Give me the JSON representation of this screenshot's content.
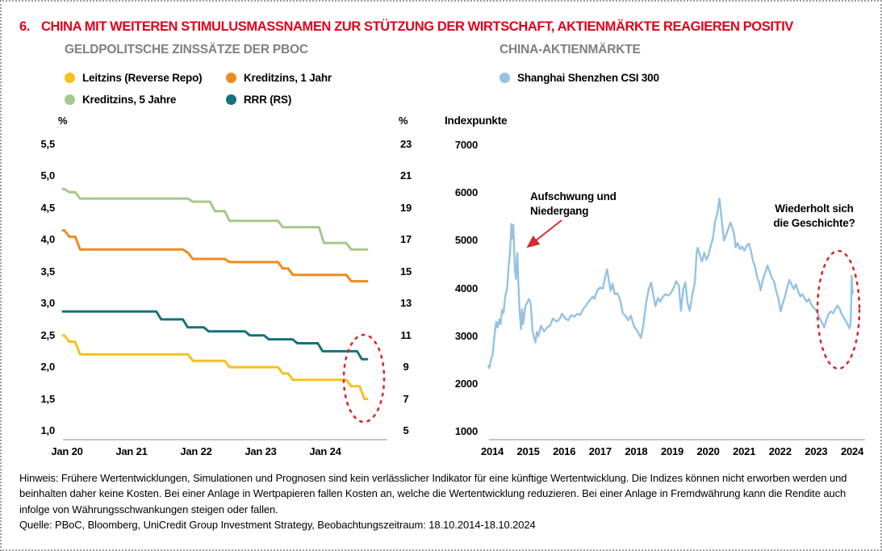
{
  "title": {
    "number": "6.",
    "text": "CHINA MIT WEITEREN STIMULUSMASSNAMEN ZUR STÜTZUNG DER WIRTSCHAFT, AKTIENMÄRKTE REAGIEREN POSITIV"
  },
  "colors": {
    "title_red": "#E2001A",
    "annotation_red": "#D42B30",
    "chart_title_gray": "#7F7F7F",
    "axis_gray": "#8C8C8C",
    "leitzins_yellow": "#F5C21D",
    "kreditzins1_orange": "#F18A1E",
    "kreditzins5_green": "#A6C88C",
    "rrr_teal": "#15727E",
    "csi300_blue": "#95C2E3"
  },
  "left_chart": {
    "title": "GELDPOLITSCHE ZINSSÄTZE DER PBOC",
    "legend": [
      {
        "label": "Leitzins (Reverse Repo)",
        "color": "#F5C21D"
      },
      {
        "label": "Kreditzins, 1 Jahr",
        "color": "#F18A1E"
      },
      {
        "label": "Kreditzins, 5 Jahre",
        "color": "#A6C88C"
      },
      {
        "label": "RRR (RS)",
        "color": "#15727E"
      }
    ],
    "y_left": {
      "unit": "%",
      "ticks": [
        "5,5",
        "5,0",
        "4,5",
        "4,0",
        "3,5",
        "3,0",
        "2,5",
        "2,0",
        "1,5",
        "1,0"
      ]
    },
    "y_right": {
      "unit": "%",
      "ticks": [
        "23",
        "21",
        "19",
        "17",
        "15",
        "13",
        "11",
        "9",
        "7",
        "5"
      ]
    },
    "x_ticks": [
      "Jan 20",
      "Jan 21",
      "Jan 22",
      "Jan 23",
      "Jan 24"
    ]
  },
  "right_chart": {
    "title": "CHINA-AKTIENMÄRKTE",
    "legend": [
      {
        "label": "Shanghai Shenzhen CSI 300",
        "color": "#95C2E3"
      }
    ],
    "y": {
      "unit": "Indexpunkte",
      "ticks": [
        "7000",
        "6000",
        "5000",
        "4000",
        "3000",
        "2000",
        "1000"
      ]
    },
    "x_ticks": [
      "2014",
      "2015",
      "2016",
      "2017",
      "2018",
      "2019",
      "2020",
      "2021",
      "2022",
      "2023",
      "2024"
    ],
    "annotations": [
      {
        "lines": [
          "Aufschwung und",
          "Niedergang"
        ]
      },
      {
        "lines": [
          "Wiederholt sich",
          "die Geschichte?"
        ]
      }
    ]
  },
  "chart_data": [
    {
      "type": "line",
      "title": "GELDPOLITSCHE ZINSSÄTZE DER PBOC",
      "xlabel": "",
      "x_tick_labels": [
        "Jan 20",
        "Jan 21",
        "Jan 22",
        "Jan 23",
        "Jan 24"
      ],
      "xlim": [
        2020.0,
        2024.8
      ],
      "y_left_label": "%",
      "y_left_range": [
        1.0,
        5.5
      ],
      "y_right_label": "%",
      "y_right_range": [
        5,
        23
      ],
      "grid": false,
      "legend_position": "top",
      "line_style": "step",
      "series": [
        {
          "name": "Leitzins (Reverse Repo)",
          "axis": "left",
          "color": "#F5C21D",
          "points": [
            [
              2020.0,
              2.5
            ],
            [
              2020.1,
              2.4
            ],
            [
              2020.27,
              2.2
            ],
            [
              2022.05,
              2.1
            ],
            [
              2022.63,
              2.0
            ],
            [
              2023.47,
              1.9
            ],
            [
              2023.63,
              1.8
            ],
            [
              2024.55,
              1.7
            ],
            [
              2024.76,
              1.5
            ],
            [
              2024.8,
              1.5
            ]
          ]
        },
        {
          "name": "Kreditzins, 1 Jahr",
          "axis": "left",
          "color": "#F18A1E",
          "points": [
            [
              2020.0,
              4.15
            ],
            [
              2020.1,
              4.05
            ],
            [
              2020.27,
              3.85
            ],
            [
              2021.97,
              3.8
            ],
            [
              2022.05,
              3.7
            ],
            [
              2022.63,
              3.65
            ],
            [
              2023.47,
              3.55
            ],
            [
              2023.63,
              3.45
            ],
            [
              2024.55,
              3.35
            ],
            [
              2024.8,
              3.35
            ]
          ]
        },
        {
          "name": "Kreditzins, 5 Jahre",
          "axis": "left",
          "color": "#A6C88C",
          "points": [
            [
              2020.0,
              4.8
            ],
            [
              2020.1,
              4.75
            ],
            [
              2020.27,
              4.65
            ],
            [
              2022.05,
              4.6
            ],
            [
              2022.4,
              4.45
            ],
            [
              2022.63,
              4.3
            ],
            [
              2023.47,
              4.2
            ],
            [
              2024.12,
              3.95
            ],
            [
              2024.55,
              3.85
            ],
            [
              2024.8,
              3.85
            ]
          ]
        },
        {
          "name": "RRR (RS)",
          "axis": "right",
          "color": "#15727E",
          "points": [
            [
              2020.0,
              12.5
            ],
            [
              2021.55,
              12.0
            ],
            [
              2021.97,
              11.5
            ],
            [
              2022.3,
              11.25
            ],
            [
              2022.95,
              11.0
            ],
            [
              2023.25,
              10.75
            ],
            [
              2023.7,
              10.5
            ],
            [
              2024.1,
              10.0
            ],
            [
              2024.72,
              9.5
            ],
            [
              2024.8,
              9.5
            ]
          ]
        }
      ]
    },
    {
      "type": "line",
      "title": "CHINA-AKTIENMÄRKTE",
      "ylabel": "Indexpunkte",
      "ylim": [
        1000,
        7000
      ],
      "xlim": [
        2014.8,
        2024.85
      ],
      "x_tick_labels": [
        "2014",
        "2015",
        "2016",
        "2017",
        "2018",
        "2019",
        "2020",
        "2021",
        "2022",
        "2023",
        "2024"
      ],
      "grid": false,
      "annotations": [
        "Aufschwung und Niedergang (2015)",
        "Wiederholt sich die Geschichte? (2024)"
      ],
      "series": [
        {
          "name": "Shanghai Shenzhen CSI 300",
          "color": "#95C2E3",
          "points": [
            [
              2014.8,
              2400
            ],
            [
              2014.83,
              2330
            ],
            [
              2014.87,
              2480
            ],
            [
              2014.92,
              2600
            ],
            [
              2014.97,
              3000
            ],
            [
              2015.02,
              3300
            ],
            [
              2015.06,
              3180
            ],
            [
              2015.1,
              3350
            ],
            [
              2015.14,
              3250
            ],
            [
              2015.18,
              3550
            ],
            [
              2015.22,
              3480
            ],
            [
              2015.27,
              3850
            ],
            [
              2015.32,
              3980
            ],
            [
              2015.36,
              4450
            ],
            [
              2015.4,
              4750
            ],
            [
              2015.44,
              5350
            ],
            [
              2015.46,
              5050
            ],
            [
              2015.49,
              5330
            ],
            [
              2015.53,
              4450
            ],
            [
              2015.56,
              4200
            ],
            [
              2015.6,
              4740
            ],
            [
              2015.63,
              4100
            ],
            [
              2015.66,
              3560
            ],
            [
              2015.7,
              3150
            ],
            [
              2015.73,
              3560
            ],
            [
              2015.76,
              3250
            ],
            [
              2015.82,
              3630
            ],
            [
              2015.87,
              3700
            ],
            [
              2015.92,
              3780
            ],
            [
              2015.97,
              3680
            ],
            [
              2016.02,
              3100
            ],
            [
              2016.07,
              2950
            ],
            [
              2016.1,
              2870
            ],
            [
              2016.14,
              3090
            ],
            [
              2016.18,
              3000
            ],
            [
              2016.25,
              3220
            ],
            [
              2016.33,
              3100
            ],
            [
              2016.42,
              3180
            ],
            [
              2016.5,
              3220
            ],
            [
              2016.58,
              3370
            ],
            [
              2016.67,
              3310
            ],
            [
              2016.75,
              3340
            ],
            [
              2016.83,
              3470
            ],
            [
              2016.92,
              3370
            ],
            [
              2017.0,
              3330
            ],
            [
              2017.08,
              3440
            ],
            [
              2017.17,
              3410
            ],
            [
              2017.25,
              3470
            ],
            [
              2017.33,
              3440
            ],
            [
              2017.42,
              3580
            ],
            [
              2017.5,
              3650
            ],
            [
              2017.58,
              3740
            ],
            [
              2017.67,
              3830
            ],
            [
              2017.72,
              3780
            ],
            [
              2017.8,
              3960
            ],
            [
              2017.88,
              4020
            ],
            [
              2017.95,
              3990
            ],
            [
              2018.02,
              4250
            ],
            [
              2018.07,
              4400
            ],
            [
              2018.12,
              4150
            ],
            [
              2018.17,
              3950
            ],
            [
              2018.22,
              4100
            ],
            [
              2018.28,
              3880
            ],
            [
              2018.35,
              3900
            ],
            [
              2018.42,
              3780
            ],
            [
              2018.5,
              3480
            ],
            [
              2018.58,
              3420
            ],
            [
              2018.65,
              3330
            ],
            [
              2018.72,
              3430
            ],
            [
              2018.8,
              3220
            ],
            [
              2018.88,
              3130
            ],
            [
              2018.95,
              3040
            ],
            [
              2019.0,
              2960
            ],
            [
              2019.07,
              3250
            ],
            [
              2019.14,
              3680
            ],
            [
              2019.21,
              3980
            ],
            [
              2019.28,
              4120
            ],
            [
              2019.33,
              3900
            ],
            [
              2019.4,
              3630
            ],
            [
              2019.47,
              3800
            ],
            [
              2019.53,
              3720
            ],
            [
              2019.6,
              3820
            ],
            [
              2019.67,
              3880
            ],
            [
              2019.75,
              3850
            ],
            [
              2019.82,
              3900
            ],
            [
              2019.9,
              4020
            ],
            [
              2019.97,
              4150
            ],
            [
              2020.04,
              4060
            ],
            [
              2020.1,
              3530
            ],
            [
              2020.16,
              3980
            ],
            [
              2020.22,
              4120
            ],
            [
              2020.28,
              3700
            ],
            [
              2020.34,
              3530
            ],
            [
              2020.42,
              3900
            ],
            [
              2020.48,
              4100
            ],
            [
              2020.53,
              4750
            ],
            [
              2020.56,
              4850
            ],
            [
              2020.62,
              4700
            ],
            [
              2020.68,
              4560
            ],
            [
              2020.74,
              4750
            ],
            [
              2020.8,
              4600
            ],
            [
              2020.86,
              4700
            ],
            [
              2020.92,
              4900
            ],
            [
              2020.98,
              5050
            ],
            [
              2021.04,
              5400
            ],
            [
              2021.1,
              5570
            ],
            [
              2021.16,
              5880
            ],
            [
              2021.22,
              5450
            ],
            [
              2021.28,
              5000
            ],
            [
              2021.34,
              5120
            ],
            [
              2021.4,
              5250
            ],
            [
              2021.46,
              5380
            ],
            [
              2021.52,
              5250
            ],
            [
              2021.57,
              5100
            ],
            [
              2021.6,
              4860
            ],
            [
              2021.66,
              4950
            ],
            [
              2021.72,
              4820
            ],
            [
              2021.78,
              4880
            ],
            [
              2021.84,
              4790
            ],
            [
              2021.9,
              4880
            ],
            [
              2021.96,
              4940
            ],
            [
              2022.02,
              4810
            ],
            [
              2022.08,
              4580
            ],
            [
              2022.14,
              4450
            ],
            [
              2022.2,
              4220
            ],
            [
              2022.25,
              4120
            ],
            [
              2022.29,
              3960
            ],
            [
              2022.35,
              4180
            ],
            [
              2022.42,
              4330
            ],
            [
              2022.48,
              4480
            ],
            [
              2022.54,
              4350
            ],
            [
              2022.6,
              4220
            ],
            [
              2022.66,
              4140
            ],
            [
              2022.72,
              3940
            ],
            [
              2022.78,
              3780
            ],
            [
              2022.84,
              3520
            ],
            [
              2022.9,
              3690
            ],
            [
              2022.96,
              3830
            ],
            [
              2023.02,
              4020
            ],
            [
              2023.08,
              4180
            ],
            [
              2023.14,
              4080
            ],
            [
              2023.2,
              3990
            ],
            [
              2023.26,
              4090
            ],
            [
              2023.32,
              3940
            ],
            [
              2023.38,
              3830
            ],
            [
              2023.44,
              3880
            ],
            [
              2023.5,
              3790
            ],
            [
              2023.56,
              3720
            ],
            [
              2023.62,
              3780
            ],
            [
              2023.68,
              3670
            ],
            [
              2023.74,
              3600
            ],
            [
              2023.8,
              3560
            ],
            [
              2023.86,
              3480
            ],
            [
              2023.92,
              3370
            ],
            [
              2023.98,
              3280
            ],
            [
              2024.04,
              3180
            ],
            [
              2024.1,
              3350
            ],
            [
              2024.16,
              3460
            ],
            [
              2024.22,
              3520
            ],
            [
              2024.28,
              3480
            ],
            [
              2024.34,
              3560
            ],
            [
              2024.4,
              3640
            ],
            [
              2024.46,
              3580
            ],
            [
              2024.52,
              3460
            ],
            [
              2024.58,
              3380
            ],
            [
              2024.64,
              3310
            ],
            [
              2024.7,
              3220
            ],
            [
              2024.74,
              3160
            ],
            [
              2024.77,
              3320
            ],
            [
              2024.795,
              4260
            ],
            [
              2024.81,
              3880
            ],
            [
              2024.83,
              3980
            ]
          ]
        }
      ]
    }
  ],
  "footer": {
    "hinweis": "Hinweis: Frühere Wertentwicklungen, Simulationen und Prognosen sind kein verlässlicher Indikator für eine künftige Wertentwicklung. Die Indizes können nicht erworben werden und beinhalten daher keine Kosten. Bei einer Anlage in Wertpapieren fallen Kosten an, welche die Wertentwicklung reduzieren. Bei einer Anlage in Fremdwährung kann die Rendite auch infolge von Währungsschwankungen steigen oder fallen.",
    "quelle": "Quelle: PBoC, Bloomberg, UniCredit Group Investment Strategy, Beobachtungszeitraum: 18.10.2014-18.10.2024"
  }
}
